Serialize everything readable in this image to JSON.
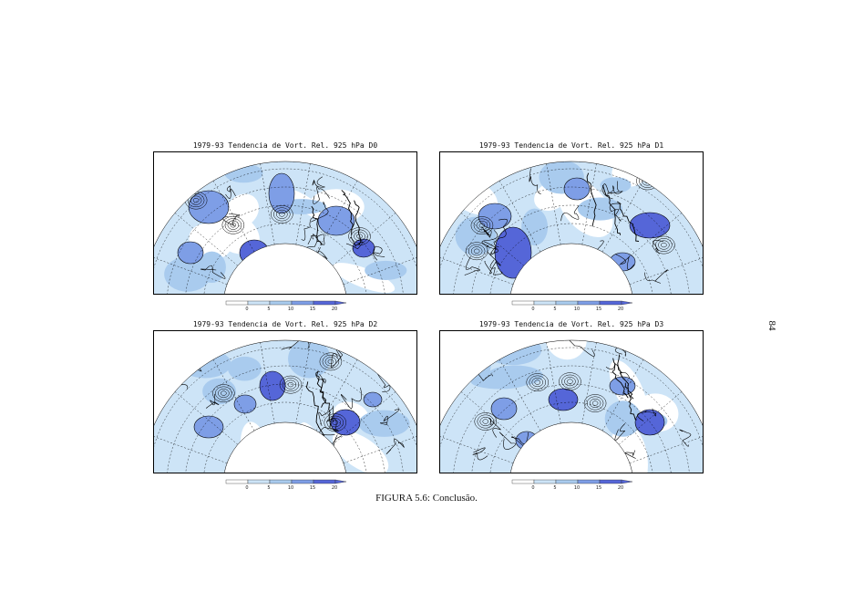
{
  "colors": {
    "light": "#cde4f7",
    "mid": "#a9cbee",
    "deep": "#7e9ee6",
    "deepest": "#5566d8",
    "line": "#000000"
  },
  "panels": [
    {
      "title": "1979-93 Tendencia de Vort. Rel. 925 hPa D0",
      "variant": 0
    },
    {
      "title": "1979-93 Tendencia de Vort. Rel. 925 hPa D1",
      "variant": 1
    },
    {
      "title": "1979-93 Tendencia de Vort. Rel. 925 hPa D2",
      "variant": 2
    },
    {
      "title": "1979-93 Tendencia de Vort. Rel. 925 hPa D3",
      "variant": 3
    }
  ],
  "colorbar": {
    "tick_labels": [
      "0",
      "5",
      "10",
      "15",
      "20"
    ],
    "panel_tick_labels": [
      [
        "0",
        "5",
        "10",
        "15",
        "20"
      ],
      [
        "0",
        "5",
        "10",
        "15",
        "20"
      ],
      [
        "0",
        "5",
        "10",
        "15",
        "20"
      ],
      [
        "0",
        "5",
        "10",
        "15",
        "20"
      ]
    ]
  },
  "caption": "FIGURA 5.6: Conclusão.",
  "page_number": "84"
}
